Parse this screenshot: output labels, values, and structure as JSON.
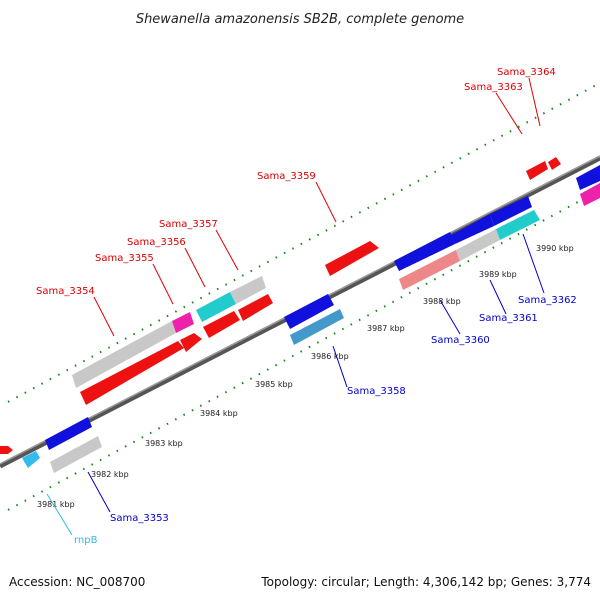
{
  "title": "Shewanella amazonensis SB2B, complete genome",
  "accession": "Accession: NC_008700",
  "summary": "Topology: circular; Length: 4,306,142 bp; Genes: 3,774",
  "colors": {
    "forward_label": "#dd0000",
    "reverse_label": "#0000cc",
    "rna_label": "#33bbdd",
    "backbone": "#777777",
    "tick": "#118811"
  },
  "scale_labels": [
    "3981 kbp",
    "3982 kbp",
    "3983 kbp",
    "3984 kbp",
    "3985 kbp",
    "3986 kbp",
    "3987 kbp",
    "3988 kbp",
    "3989 kbp",
    "3990 kbp"
  ],
  "gene_labels": [
    "Sama_3364",
    "Sama_3363",
    "Sama_3359",
    "Sama_3357",
    "Sama_3356",
    "Sama_3355",
    "Sama_3354",
    "Sama_3362",
    "Sama_3361",
    "Sama_3360",
    "Sama_3358",
    "Sama_3353",
    "rnpB"
  ]
}
